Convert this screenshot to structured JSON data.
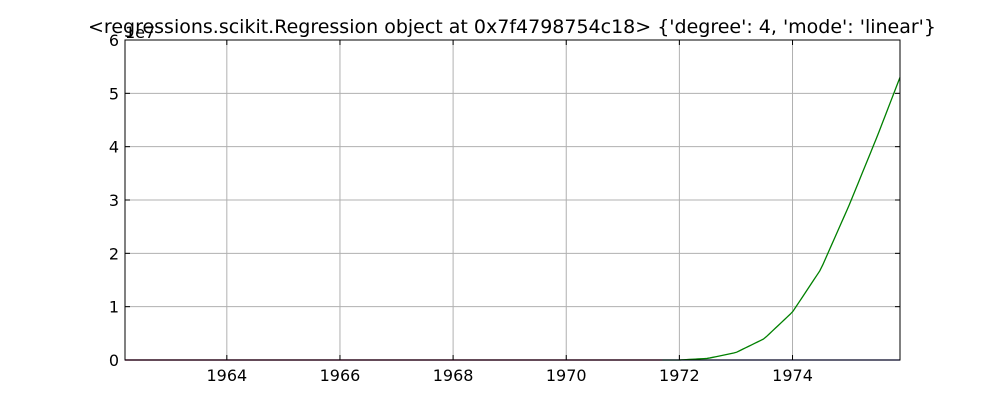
{
  "chart_data": {
    "type": "line",
    "title": "<regressions.scikit.Regression object at 0x7f4798754c18> {'degree': 4, 'mode': 'linear'}",
    "offset_label": "1e7",
    "xlabel": "",
    "ylabel": "",
    "xlim": [
      1962.2,
      1975.9
    ],
    "ylim": [
      0,
      6
    ],
    "x_ticks": [
      1964,
      1966,
      1968,
      1970,
      1972,
      1974
    ],
    "x_tick_labels": [
      "1964",
      "1966",
      "1968",
      "1970",
      "1972",
      "1974"
    ],
    "y_ticks": [
      0,
      1,
      2,
      3,
      4,
      5,
      6
    ],
    "y_tick_labels": [
      "0",
      "1",
      "2",
      "3",
      "4",
      "5",
      "6"
    ],
    "grid": true,
    "series": [
      {
        "color": "#1f1fb4",
        "x": [
          1962.2,
          1975.9
        ],
        "y": [
          0,
          0
        ]
      },
      {
        "color": "#cc0000",
        "x": [
          1962.2,
          1971.7
        ],
        "y": [
          0,
          0
        ]
      },
      {
        "color": "#008000",
        "x": [
          1971.7,
          1972.0,
          1972.5,
          1973.0,
          1973.5,
          1974.0,
          1974.5,
          1975.0,
          1975.5,
          1975.9
        ],
        "y": [
          0.0,
          0.0,
          0.03,
          0.14,
          0.4,
          0.9,
          1.7,
          2.9,
          4.2,
          5.3
        ]
      }
    ]
  }
}
